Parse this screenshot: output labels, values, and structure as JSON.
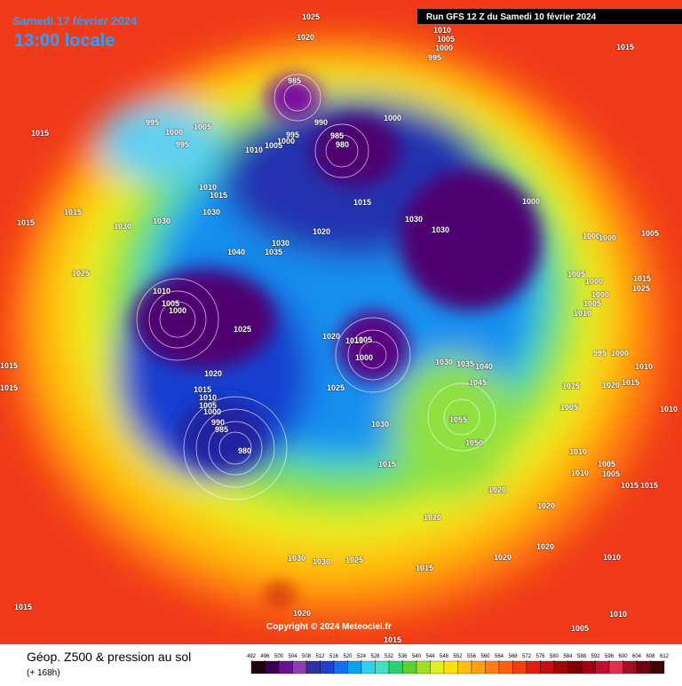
{
  "header": {
    "date": "Samedi 17 février 2024",
    "time": "13:00 locale",
    "run": "Run GFS 12 Z du Samedi 10 février 2024"
  },
  "footer": {
    "title": "Géop. Z500 & pression au sol",
    "subtitle": "(+ 168h)",
    "copyright": "Copyright © 2024 Meteociel.fr"
  },
  "colorbar": {
    "ticks": [
      492,
      496,
      500,
      504,
      508,
      512,
      516,
      520,
      524,
      528,
      532,
      536,
      540,
      544,
      548,
      552,
      556,
      560,
      564,
      568,
      572,
      576,
      580,
      584,
      588,
      592,
      596,
      600,
      604,
      608,
      612
    ]
  },
  "pressure_labels": [
    1025,
    1020,
    1010,
    1005,
    1000,
    995,
    1015,
    985,
    990,
    1000,
    985,
    980,
    995,
    1000,
    1005,
    1010,
    1000,
    995,
    1005,
    995,
    1015,
    1010,
    1015,
    1030,
    1030,
    1030,
    1015,
    1015,
    1015,
    1020,
    1030,
    1035,
    1040,
    1030,
    1030,
    1000,
    1000,
    1000,
    1005,
    1025,
    1010,
    1005,
    1000,
    1025,
    1020,
    1015,
    1005,
    1000,
    1005,
    1000,
    1015,
    1025,
    1000,
    1005,
    1010,
    995,
    1000,
    1010,
    1030,
    1035,
    1040,
    1045,
    1025,
    1020,
    1015,
    1010,
    1005,
    1000,
    990,
    985,
    980,
    1015,
    1020,
    1015,
    1005,
    1055,
    1030,
    1050,
    1010,
    1010,
    1005,
    1005,
    1015,
    1015,
    1015,
    1020,
    1020,
    1020,
    1020,
    1020,
    1015,
    1030,
    1030,
    1025,
    1010,
    1015,
    1020,
    1010,
    1005,
    1015,
    1015,
    1015,
    1010
  ]
}
